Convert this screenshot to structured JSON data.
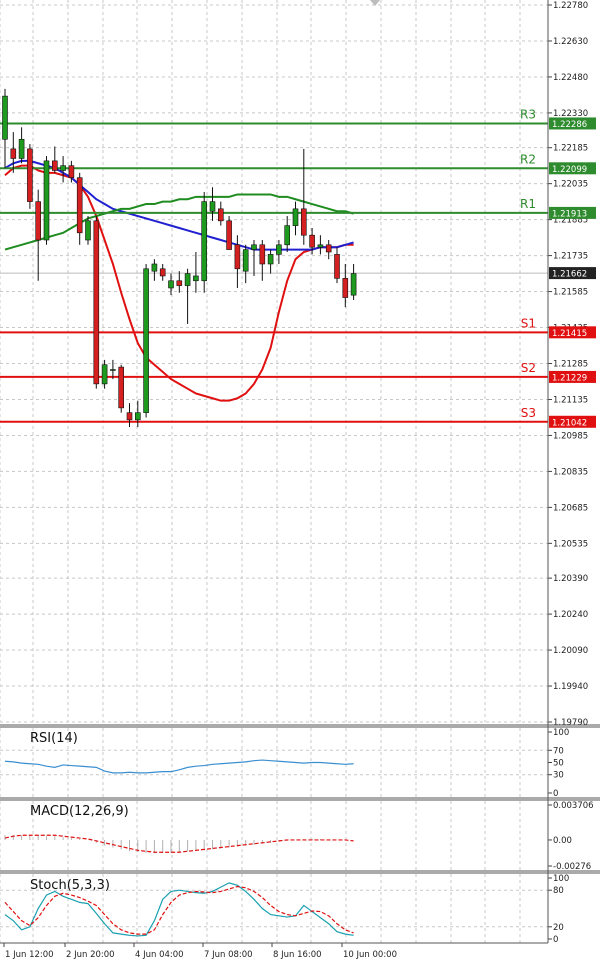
{
  "chart_data": [
    {
      "type": "candlestick",
      "title": "",
      "ylim": [
        1.1979,
        1.2278
      ],
      "y_ticks": [
        "1.22780",
        "1.22630",
        "1.22480",
        "1.22330",
        "1.22185",
        "1.22035",
        "1.21885",
        "1.21735",
        "1.21585",
        "1.21435",
        "1.21285",
        "1.21135",
        "1.20985",
        "1.20835",
        "1.20685",
        "1.20535",
        "1.20390",
        "1.20240",
        "1.20090",
        "1.19940",
        "1.19790"
      ],
      "current_price": "1.21662",
      "levels": [
        {
          "name": "R3",
          "value": 1.22286,
          "label": "1.22286",
          "color": "#2e8b2e"
        },
        {
          "name": "R2",
          "value": 1.22099,
          "label": "1.22099",
          "color": "#2e8b2e"
        },
        {
          "name": "R1",
          "value": 1.21913,
          "label": "1.21913",
          "color": "#2e8b2e"
        },
        {
          "name": "S1",
          "value": 1.21415,
          "label": "1.21415",
          "color": "#e01010"
        },
        {
          "name": "S2",
          "value": 1.21229,
          "label": "1.21229",
          "color": "#e01010"
        },
        {
          "name": "S3",
          "value": 1.21042,
          "label": "1.21042",
          "color": "#e01010"
        }
      ],
      "x_labels": [
        "1 Jun 12:00",
        "2 Jun 20:00",
        "4 Jun 04:00",
        "7 Jun 08:00",
        "8 Jun 16:00",
        "10 Jun 00:00"
      ],
      "candles": [
        {
          "o": 1.2222,
          "h": 1.2243,
          "l": 1.221,
          "c": 1.224
        },
        {
          "o": 1.2218,
          "h": 1.2225,
          "l": 1.2208,
          "c": 1.2214
        },
        {
          "o": 1.2214,
          "h": 1.2227,
          "l": 1.2212,
          "c": 1.2222
        },
        {
          "o": 1.2218,
          "h": 1.222,
          "l": 1.2193,
          "c": 1.2196
        },
        {
          "o": 1.2196,
          "h": 1.2201,
          "l": 1.2163,
          "c": 1.218
        },
        {
          "o": 1.218,
          "h": 1.2215,
          "l": 1.2178,
          "c": 1.2213
        },
        {
          "o": 1.2213,
          "h": 1.2219,
          "l": 1.2208,
          "c": 1.2209
        },
        {
          "o": 1.2209,
          "h": 1.2215,
          "l": 1.2204,
          "c": 1.2211
        },
        {
          "o": 1.2211,
          "h": 1.2213,
          "l": 1.2204,
          "c": 1.2206
        },
        {
          "o": 1.2206,
          "h": 1.2208,
          "l": 1.2178,
          "c": 1.2183
        },
        {
          "o": 1.218,
          "h": 1.219,
          "l": 1.2178,
          "c": 1.2188
        },
        {
          "o": 1.2188,
          "h": 1.219,
          "l": 1.2118,
          "c": 1.212
        },
        {
          "o": 1.212,
          "h": 1.213,
          "l": 1.2118,
          "c": 1.2128
        },
        {
          "o": 1.2126,
          "h": 1.213,
          "l": 1.2122,
          "c": 1.2126
        },
        {
          "o": 1.2127,
          "h": 1.2128,
          "l": 1.2108,
          "c": 1.211
        },
        {
          "o": 1.2108,
          "h": 1.2112,
          "l": 1.2102,
          "c": 1.2105
        },
        {
          "o": 1.2105,
          "h": 1.2113,
          "l": 1.2102,
          "c": 1.2108
        },
        {
          "o": 1.2108,
          "h": 1.217,
          "l": 1.2106,
          "c": 1.2168
        },
        {
          "o": 1.2167,
          "h": 1.2172,
          "l": 1.2163,
          "c": 1.217
        },
        {
          "o": 1.2168,
          "h": 1.217,
          "l": 1.2163,
          "c": 1.2165
        },
        {
          "o": 1.216,
          "h": 1.2166,
          "l": 1.2157,
          "c": 1.2163
        },
        {
          "o": 1.2163,
          "h": 1.2167,
          "l": 1.2158,
          "c": 1.2161
        },
        {
          "o": 1.2161,
          "h": 1.2168,
          "l": 1.2145,
          "c": 1.2166
        },
        {
          "o": 1.2163,
          "h": 1.2175,
          "l": 1.2158,
          "c": 1.2165
        },
        {
          "o": 1.2163,
          "h": 1.22,
          "l": 1.2158,
          "c": 1.2196
        },
        {
          "o": 1.2192,
          "h": 1.2202,
          "l": 1.2188,
          "c": 1.2196
        },
        {
          "o": 1.2193,
          "h": 1.2196,
          "l": 1.2186,
          "c": 1.2188
        },
        {
          "o": 1.2188,
          "h": 1.219,
          "l": 1.2176,
          "c": 1.2176
        },
        {
          "o": 1.2178,
          "h": 1.2182,
          "l": 1.216,
          "c": 1.2168
        },
        {
          "o": 1.2167,
          "h": 1.2178,
          "l": 1.2162,
          "c": 1.2176
        },
        {
          "o": 1.2176,
          "h": 1.218,
          "l": 1.2165,
          "c": 1.2178
        },
        {
          "o": 1.2178,
          "h": 1.218,
          "l": 1.2163,
          "c": 1.217
        },
        {
          "o": 1.217,
          "h": 1.2176,
          "l": 1.2166,
          "c": 1.2174
        },
        {
          "o": 1.2174,
          "h": 1.218,
          "l": 1.217,
          "c": 1.2178
        },
        {
          "o": 1.2178,
          "h": 1.219,
          "l": 1.2175,
          "c": 1.2186
        },
        {
          "o": 1.2186,
          "h": 1.2196,
          "l": 1.2182,
          "c": 1.2193
        },
        {
          "o": 1.2193,
          "h": 1.2218,
          "l": 1.2178,
          "c": 1.2182
        },
        {
          "o": 1.2182,
          "h": 1.2185,
          "l": 1.2174,
          "c": 1.2177
        },
        {
          "o": 1.2177,
          "h": 1.2182,
          "l": 1.2174,
          "c": 1.2178
        },
        {
          "o": 1.2178,
          "h": 1.218,
          "l": 1.2172,
          "c": 1.2175
        },
        {
          "o": 1.2174,
          "h": 1.2177,
          "l": 1.2162,
          "c": 1.2164
        },
        {
          "o": 1.2164,
          "h": 1.217,
          "l": 1.2152,
          "c": 1.2156
        },
        {
          "o": 1.2157,
          "h": 1.217,
          "l": 1.2155,
          "c": 1.2166
        }
      ],
      "moving_averages": [
        {
          "color": "#e01010",
          "values": [
            1.2207,
            1.221,
            1.2211,
            1.2211,
            1.2209,
            1.2208,
            1.2208,
            1.2207,
            1.2206,
            1.2203,
            1.2198,
            1.219,
            1.218,
            1.217,
            1.2158,
            1.2147,
            1.2137,
            1.2131,
            1.2128,
            1.2125,
            1.2122,
            1.212,
            1.2118,
            1.2116,
            1.2115,
            1.2114,
            1.2113,
            1.2113,
            1.2114,
            1.2116,
            1.212,
            1.2126,
            1.2135,
            1.215,
            1.2163,
            1.2172,
            1.2175,
            1.2176,
            1.2177,
            1.2177,
            1.2177,
            1.2178,
            1.2178
          ]
        },
        {
          "color": "#2020d0",
          "values": [
            1.221,
            1.2212,
            1.2213,
            1.2213,
            1.2212,
            1.2211,
            1.221,
            1.2208,
            1.2206,
            1.2203,
            1.22,
            1.2197,
            1.2195,
            1.2193,
            1.2192,
            1.2191,
            1.219,
            1.2189,
            1.2188,
            1.2187,
            1.2186,
            1.2185,
            1.2184,
            1.2183,
            1.2182,
            1.2181,
            1.218,
            1.2179,
            1.2178,
            1.2177,
            1.2176,
            1.2176,
            1.2176,
            1.2176,
            1.2176,
            1.2176,
            1.2176,
            1.2176,
            1.2177,
            1.2177,
            1.2177,
            1.2178,
            1.2179
          ]
        },
        {
          "color": "#1e8c1e",
          "values": [
            1.2176,
            1.2177,
            1.2178,
            1.2179,
            1.218,
            1.2181,
            1.2182,
            1.2183,
            1.2185,
            1.2187,
            1.2189,
            1.219,
            1.2191,
            1.2192,
            1.2193,
            1.2193,
            1.2194,
            1.2195,
            1.2195,
            1.2196,
            1.2196,
            1.2197,
            1.2197,
            1.2198,
            1.2198,
            1.2198,
            1.2198,
            1.2198,
            1.2199,
            1.2199,
            1.2199,
            1.2199,
            1.2199,
            1.2198,
            1.2198,
            1.2197,
            1.2196,
            1.2195,
            1.2194,
            1.2193,
            1.2192,
            1.2192,
            1.2191
          ]
        }
      ]
    },
    {
      "type": "line",
      "title": "RSI(14)",
      "ylim": [
        0,
        100
      ],
      "y_ticks": [
        "100",
        "70",
        "50",
        "30",
        "0"
      ],
      "series": [
        {
          "color": "#3a8fd0",
          "values": [
            52,
            51,
            49,
            48,
            47,
            44,
            42,
            46,
            45,
            44,
            43,
            42,
            36,
            33,
            33,
            34,
            33,
            33,
            34,
            35,
            35,
            38,
            42,
            44,
            45,
            47,
            48,
            49,
            50,
            51,
            53,
            54,
            53,
            52,
            51,
            50,
            49,
            50,
            50,
            49,
            48,
            47,
            48
          ]
        }
      ]
    },
    {
      "type": "bar",
      "title": "MACD(12,26,9)",
      "y_ticks": [
        "0.003706",
        "0.00",
        "-0.00276"
      ],
      "ylim": [
        -0.00276,
        0.003706
      ],
      "histogram": [
        0.0005,
        0.0005,
        0.0005,
        0.0005,
        0.0005,
        0.0004,
        0.0004,
        0.0003,
        0.0002,
        0.0001,
        0.0,
        -0.0003,
        -0.0006,
        -0.0008,
        -0.001,
        -0.0012,
        -0.0013,
        -0.0014,
        -0.0014,
        -0.0014,
        -0.0014,
        -0.0013,
        -0.0012,
        -0.0012,
        -0.0011,
        -0.001,
        -0.0009,
        -0.0008,
        -0.0007,
        -0.0006,
        -0.0005,
        -0.0004,
        -0.0003,
        -0.0002,
        -0.0001,
        0.0,
        0.0001,
        0.0001,
        0.0001,
        0.0,
        0.0,
        0.0,
        0.0
      ],
      "signal": {
        "color": "#e01010",
        "values": [
          0.0002,
          0.0004,
          0.0005,
          0.0005,
          0.0005,
          0.0005,
          0.0005,
          0.0004,
          0.0003,
          0.0002,
          0.0001,
          -0.0001,
          -0.0003,
          -0.0005,
          -0.0007,
          -0.0009,
          -0.0011,
          -0.0012,
          -0.0013,
          -0.0013,
          -0.0013,
          -0.0013,
          -0.0012,
          -0.0011,
          -0.001,
          -0.0009,
          -0.0008,
          -0.0007,
          -0.0006,
          -0.0005,
          -0.0004,
          -0.0003,
          -0.0002,
          -0.0001,
          0.0,
          0.0,
          0.0,
          0.0,
          0.0,
          0.0,
          0.0,
          0.0,
          -0.0001
        ]
      }
    },
    {
      "type": "line",
      "title": "Stoch(5,3,3)",
      "ylim": [
        0,
        100
      ],
      "y_ticks": [
        "100",
        "80",
        "20",
        "0"
      ],
      "series": [
        {
          "color": "#1aa0b0",
          "values": [
            40,
            30,
            15,
            20,
            50,
            72,
            78,
            70,
            65,
            60,
            58,
            42,
            25,
            10,
            8,
            6,
            5,
            6,
            30,
            65,
            78,
            80,
            78,
            76,
            75,
            78,
            85,
            92,
            88,
            78,
            65,
            50,
            40,
            38,
            36,
            38,
            55,
            45,
            35,
            25,
            12,
            8,
            6
          ]
        },
        {
          "color": "#e01010",
          "dash": true,
          "values": [
            60,
            45,
            30,
            22,
            35,
            55,
            70,
            75,
            72,
            68,
            62,
            55,
            40,
            25,
            15,
            10,
            8,
            8,
            15,
            40,
            60,
            72,
            76,
            78,
            77,
            76,
            78,
            82,
            86,
            84,
            78,
            68,
            55,
            45,
            40,
            38,
            42,
            46,
            45,
            38,
            25,
            15,
            10
          ]
        }
      ]
    }
  ]
}
